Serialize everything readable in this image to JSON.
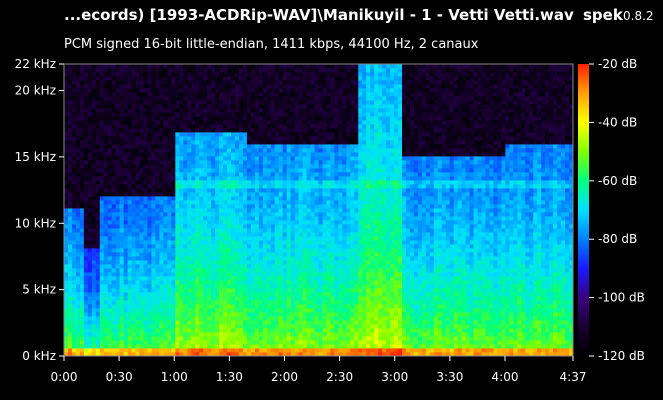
{
  "header": {
    "title": "...ecords) [1993-ACDRip-WAV]\\Manikuyil - 1 - Vetti Vetti.wav",
    "app_name": "spek",
    "app_version": "0.8.2",
    "subtitle": "PCM signed 16-bit little-endian, 1411 kbps, 44100 Hz, 2 canaux"
  },
  "chart_data": {
    "type": "heatmap",
    "title": "...ecords) [1993-ACDRip-WAV]\\Manikuyil - 1 - Vetti Vetti.wav",
    "subtitle": "PCM signed 16-bit little-endian, 1411 kbps, 44100 Hz, 2 canaux",
    "x": {
      "unit": "time",
      "range_seconds": [
        0,
        277
      ],
      "ticks": [
        {
          "label": "0:00",
          "value": 0
        },
        {
          "label": "0:30",
          "value": 30
        },
        {
          "label": "1:00",
          "value": 60
        },
        {
          "label": "1:30",
          "value": 90
        },
        {
          "label": "2:00",
          "value": 120
        },
        {
          "label": "2:30",
          "value": 150
        },
        {
          "label": "3:00",
          "value": 180
        },
        {
          "label": "3:30",
          "value": 210
        },
        {
          "label": "4:00",
          "value": 240
        },
        {
          "label": "4:37",
          "value": 277
        }
      ]
    },
    "y": {
      "unit": "kHz",
      "range": [
        0,
        22
      ],
      "ticks": [
        {
          "label": "0 kHz",
          "value": 0
        },
        {
          "label": "5 kHz",
          "value": 5
        },
        {
          "label": "10 kHz",
          "value": 10
        },
        {
          "label": "15 kHz",
          "value": 15
        },
        {
          "label": "20 kHz",
          "value": 20
        },
        {
          "label": "22 kHz",
          "value": 22
        }
      ]
    },
    "colorbar": {
      "unit": "dB",
      "range": [
        -120,
        -20
      ],
      "ticks": [
        {
          "label": "-20 dB",
          "value": -20
        },
        {
          "label": "-40 dB",
          "value": -40
        },
        {
          "label": "-60 dB",
          "value": -60
        },
        {
          "label": "-80 dB",
          "value": -80
        },
        {
          "label": "-100 dB",
          "value": -100
        },
        {
          "label": "-120 dB",
          "value": -120
        }
      ],
      "colors": [
        "#000000",
        "#1a0033",
        "#3a0080",
        "#1a1aff",
        "#0080ff",
        "#00e0ff",
        "#00ff80",
        "#80ff00",
        "#ffff00",
        "#ffa000",
        "#ff2000"
      ]
    },
    "energy_profile": {
      "comment_values_are_dB_estimates": true,
      "segments": [
        {
          "t": [
            0,
            10
          ],
          "cutoff_khz": 11,
          "level_db": -72
        },
        {
          "t": [
            10,
            20
          ],
          "cutoff_khz": 8,
          "level_db": -78
        },
        {
          "t": [
            20,
            60
          ],
          "cutoff_khz": 12,
          "level_db": -74
        },
        {
          "t": [
            60,
            100
          ],
          "cutoff_khz": 17,
          "level_db": -68
        },
        {
          "t": [
            100,
            160
          ],
          "cutoff_khz": 16,
          "level_db": -70
        },
        {
          "t": [
            160,
            185
          ],
          "cutoff_khz": 22,
          "level_db": -66
        },
        {
          "t": [
            185,
            240
          ],
          "cutoff_khz": 15,
          "level_db": -72
        },
        {
          "t": [
            240,
            277
          ],
          "cutoff_khz": 16,
          "level_db": -72
        }
      ]
    }
  }
}
